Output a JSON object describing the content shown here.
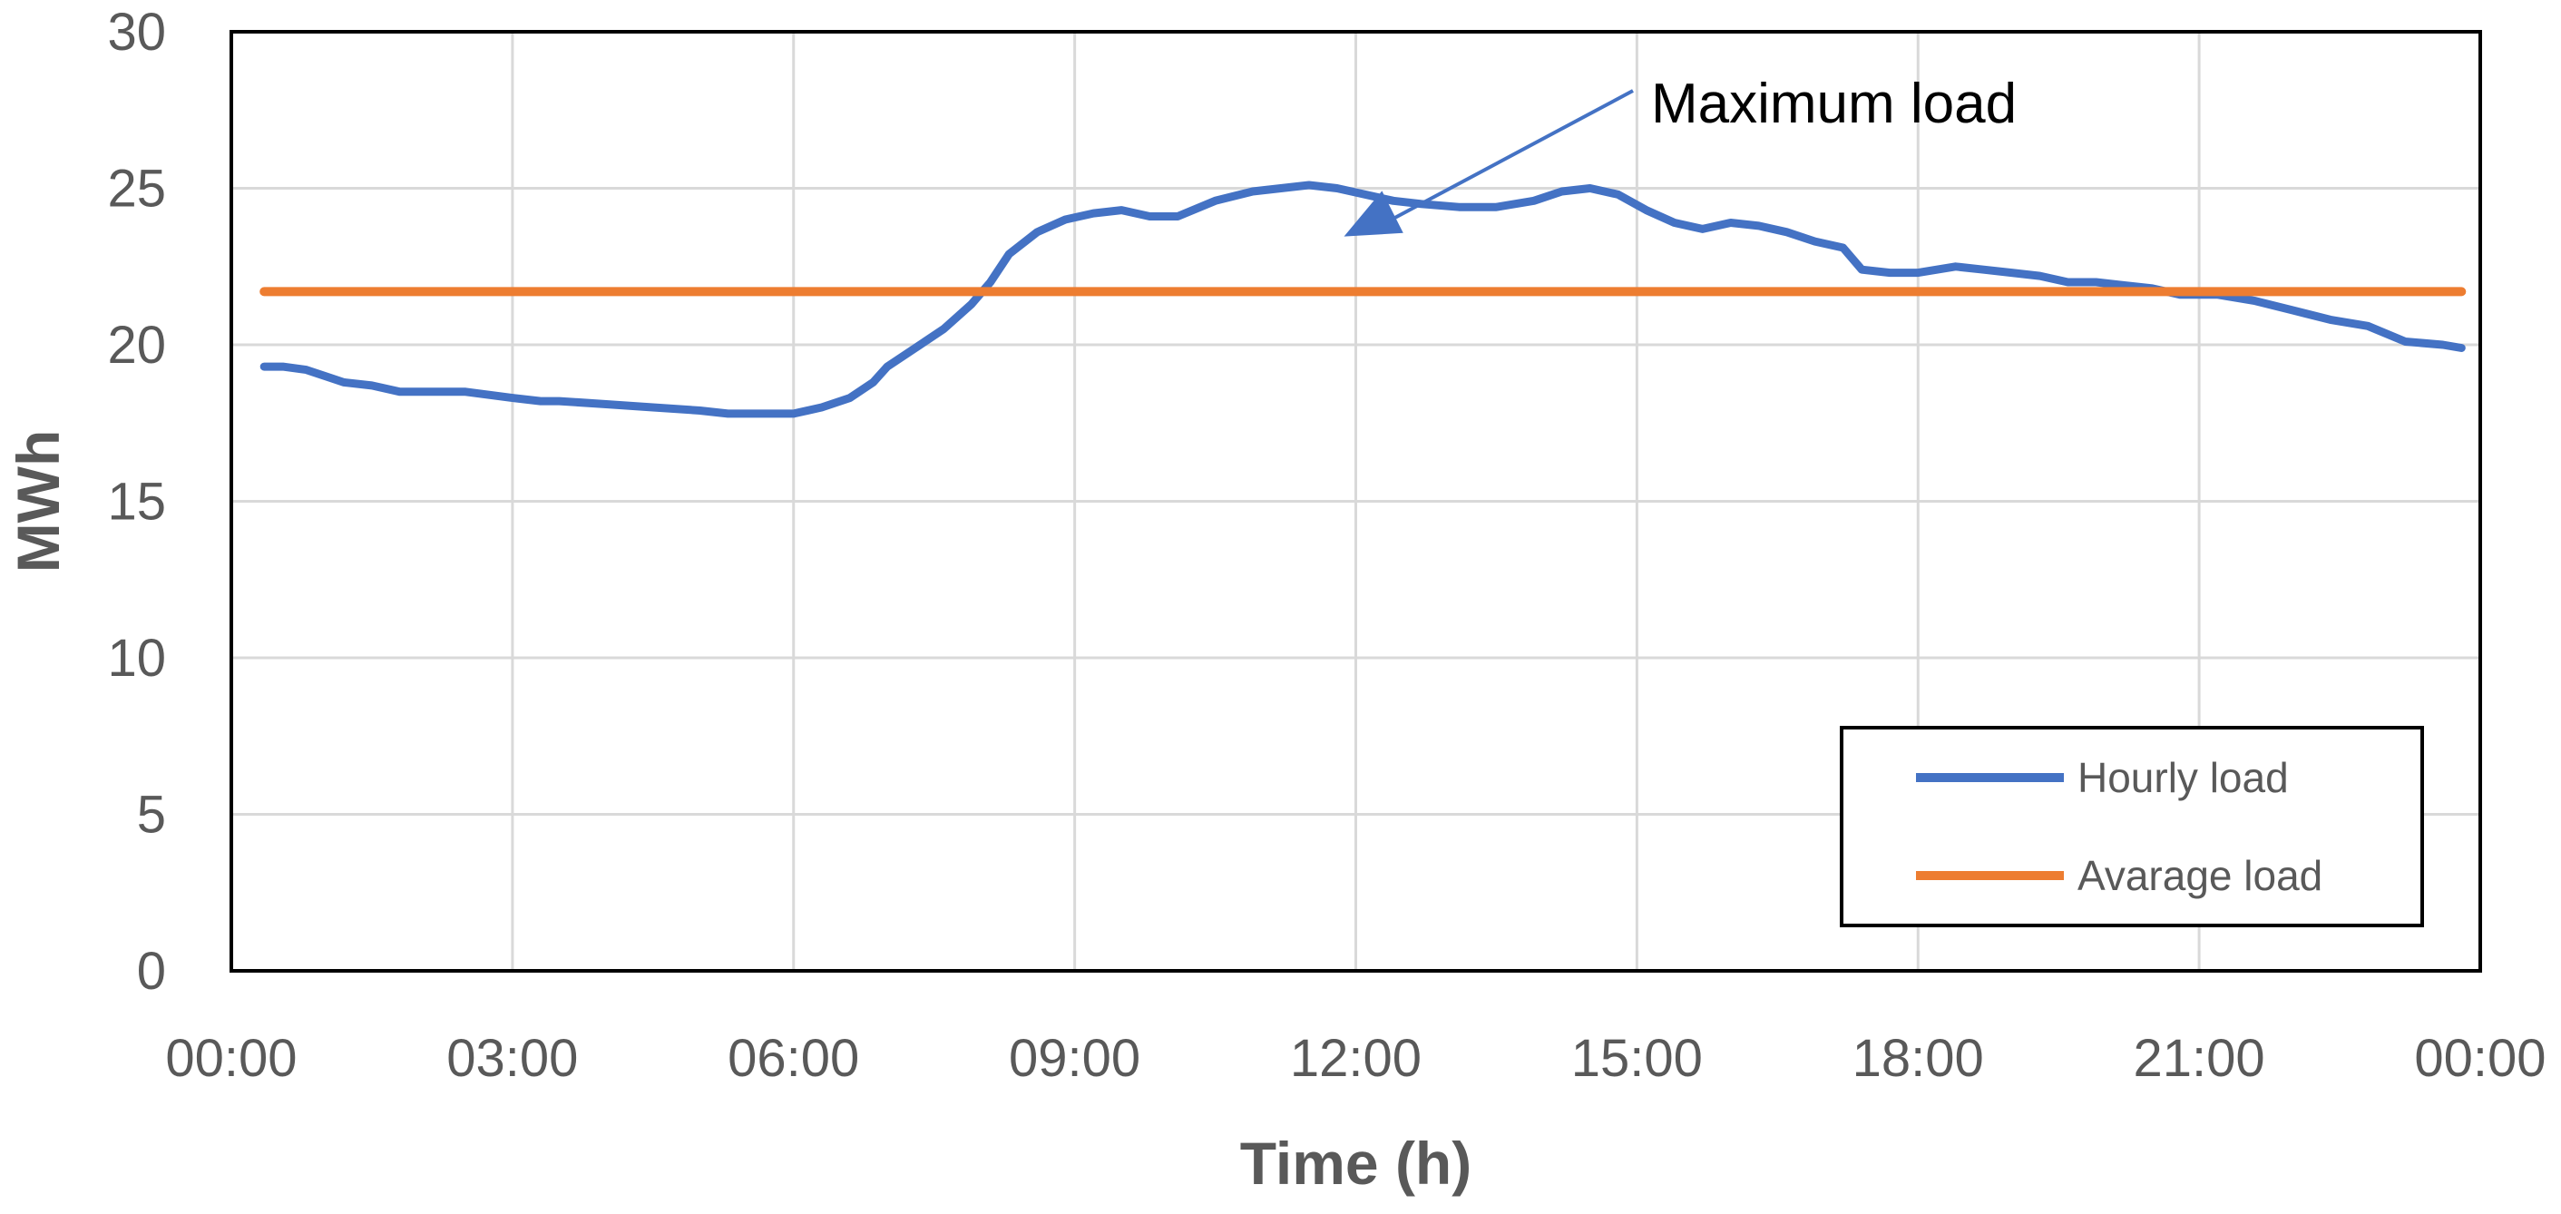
{
  "chart_data": {
    "type": "line",
    "title": "",
    "xlabel": "Time (h)",
    "ylabel": "MWh",
    "x_unit": "hours",
    "xlim": [
      0,
      24
    ],
    "ylim": [
      0,
      30
    ],
    "y_ticks": [
      0,
      5,
      10,
      15,
      20,
      25,
      30
    ],
    "x_ticks": [
      0,
      3,
      6,
      9,
      12,
      15,
      18,
      21,
      24
    ],
    "x_tick_labels": [
      "00:00",
      "03:00",
      "06:00",
      "09:00",
      "12:00",
      "15:00",
      "18:00",
      "21:00",
      "00:00"
    ],
    "grid": true,
    "legend_position": "bottom-right",
    "series": [
      {
        "name": "Hourly load",
        "color": "#4472C4",
        "x": [
          0.35,
          0.55,
          0.8,
          1.0,
          1.2,
          1.5,
          1.8,
          2.1,
          2.5,
          3.0,
          3.3,
          3.5,
          4.0,
          4.5,
          5.0,
          5.3,
          5.5,
          6.0,
          6.3,
          6.6,
          6.85,
          7.0,
          7.3,
          7.6,
          7.9,
          8.1,
          8.3,
          8.6,
          8.9,
          9.2,
          9.5,
          9.8,
          10.1,
          10.5,
          10.9,
          11.2,
          11.5,
          11.8,
          12.1,
          12.4,
          12.7,
          13.1,
          13.5,
          13.9,
          14.2,
          14.5,
          14.8,
          15.1,
          15.4,
          15.7,
          16.0,
          16.3,
          16.6,
          16.9,
          17.2,
          17.4,
          17.7,
          18.0,
          18.4,
          18.7,
          19.0,
          19.3,
          19.6,
          19.9,
          20.2,
          20.5,
          20.8,
          21.2,
          21.6,
          22.0,
          22.4,
          22.8,
          23.2,
          23.6,
          23.8
        ],
        "values": [
          19.3,
          19.3,
          19.2,
          19.0,
          18.8,
          18.7,
          18.5,
          18.5,
          18.5,
          18.3,
          18.2,
          18.2,
          18.1,
          18.0,
          17.9,
          17.8,
          17.8,
          17.8,
          18.0,
          18.3,
          18.8,
          19.3,
          19.9,
          20.5,
          21.3,
          22.0,
          22.9,
          23.6,
          24.0,
          24.2,
          24.3,
          24.1,
          24.1,
          24.6,
          24.9,
          25.0,
          25.1,
          25.0,
          24.8,
          24.6,
          24.5,
          24.4,
          24.4,
          24.6,
          24.9,
          25.0,
          24.8,
          24.3,
          23.9,
          23.7,
          23.9,
          23.8,
          23.6,
          23.3,
          23.1,
          22.4,
          22.3,
          22.3,
          22.5,
          22.4,
          22.3,
          22.2,
          22.0,
          22.0,
          21.9,
          21.8,
          21.6,
          21.6,
          21.4,
          21.1,
          20.8,
          20.6,
          20.1,
          20.0,
          19.9
        ]
      },
      {
        "name": "Avarage load",
        "color": "#ED7D31",
        "x": [
          0.35,
          23.8
        ],
        "values": [
          21.7,
          21.7
        ]
      }
    ],
    "annotations": [
      {
        "text": "Maximum load",
        "points_to": {
          "x": 11.7,
          "y": 25.2
        }
      }
    ]
  },
  "colors": {
    "grid": "#D9D9D9",
    "frame": "#000000",
    "text": "#595959"
  }
}
